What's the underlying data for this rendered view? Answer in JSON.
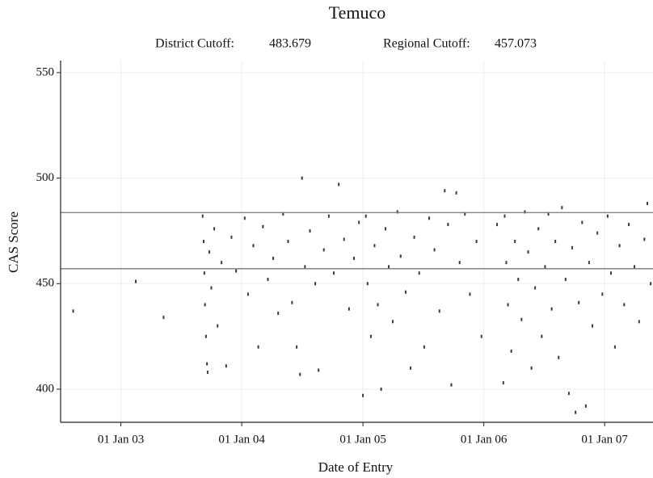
{
  "chart_data": {
    "type": "scatter",
    "title": "Temuco",
    "district_label": "District Cutoff:",
    "district_cutoff": 483.679,
    "regional_label": "Regional Cutoff:",
    "regional_cutoff": 457.073,
    "xlabel": "Date of Entry",
    "ylabel": "CAS Score",
    "color": "#3a3a3a",
    "grid": true,
    "xlim": [
      "2002-07-03",
      "2007-05-27"
    ],
    "xticks": [
      {
        "value": "2003-01-01",
        "label": "01 Jan 03"
      },
      {
        "value": "2004-01-01",
        "label": "01 Jan 04"
      },
      {
        "value": "2005-01-01",
        "label": "01 Jan 05"
      },
      {
        "value": "2006-01-01",
        "label": "01 Jan 06"
      },
      {
        "value": "2007-01-01",
        "label": "01 Jan 07"
      }
    ],
    "ylim": [
      384.3,
      555.7
    ],
    "yticks": [
      400,
      450,
      500,
      550
    ],
    "x": [
      "2002-08-10",
      "2003-02-15",
      "2003-05-10",
      "2003-09-05",
      "2003-09-08",
      "2003-09-10",
      "2003-09-12",
      "2003-09-15",
      "2003-09-18",
      "2003-09-20",
      "2003-09-25",
      "2003-10-01",
      "2003-10-10",
      "2003-10-20",
      "2003-11-01",
      "2003-11-15",
      "2003-12-01",
      "2003-12-15",
      "2004-01-10",
      "2004-01-20",
      "2004-02-05",
      "2004-02-20",
      "2004-03-05",
      "2004-03-20",
      "2004-04-05",
      "2004-04-20",
      "2004-05-05",
      "2004-05-20",
      "2004-06-01",
      "2004-06-15",
      "2004-06-25",
      "2004-07-01",
      "2004-07-10",
      "2004-07-25",
      "2004-08-10",
      "2004-08-20",
      "2004-09-05",
      "2004-09-20",
      "2004-10-05",
      "2004-10-20",
      "2004-11-05",
      "2004-11-20",
      "2004-12-05",
      "2004-12-20",
      "2005-01-01",
      "2005-01-10",
      "2005-01-15",
      "2005-01-25",
      "2005-02-05",
      "2005-02-15",
      "2005-02-25",
      "2005-03-10",
      "2005-03-20",
      "2005-04-01",
      "2005-04-15",
      "2005-04-25",
      "2005-05-10",
      "2005-05-25",
      "2005-06-05",
      "2005-06-20",
      "2005-07-05",
      "2005-07-20",
      "2005-08-05",
      "2005-08-20",
      "2005-09-05",
      "2005-09-15",
      "2005-09-25",
      "2005-10-10",
      "2005-10-20",
      "2005-11-05",
      "2005-11-20",
      "2005-12-10",
      "2005-12-25",
      "2006-02-10",
      "2006-03-01",
      "2006-03-05",
      "2006-03-10",
      "2006-03-15",
      "2006-03-25",
      "2006-04-05",
      "2006-04-15",
      "2006-04-25",
      "2006-05-05",
      "2006-05-15",
      "2006-05-25",
      "2006-06-05",
      "2006-06-15",
      "2006-06-25",
      "2006-07-05",
      "2006-07-15",
      "2006-07-25",
      "2006-08-05",
      "2006-08-15",
      "2006-08-25",
      "2006-09-05",
      "2006-09-15",
      "2006-09-25",
      "2006-10-05",
      "2006-10-15",
      "2006-10-25",
      "2006-11-05",
      "2006-11-15",
      "2006-11-25",
      "2006-12-10",
      "2006-12-25",
      "2007-01-10",
      "2007-01-20",
      "2007-02-01",
      "2007-02-15",
      "2007-03-01",
      "2007-03-15",
      "2007-04-01",
      "2007-04-15",
      "2007-05-01",
      "2007-05-10",
      "2007-05-20"
    ],
    "values": [
      437,
      451,
      434,
      482,
      470,
      455,
      440,
      425,
      412,
      408,
      465,
      448,
      476,
      430,
      460,
      411,
      472,
      456,
      481,
      445,
      468,
      420,
      477,
      452,
      462,
      436,
      483,
      470,
      441,
      420,
      407,
      500,
      458,
      475,
      450,
      409,
      466,
      482,
      455,
      497,
      471,
      438,
      462,
      479,
      397,
      482,
      450,
      425,
      468,
      440,
      400,
      476,
      458,
      432,
      484,
      463,
      446,
      410,
      472,
      455,
      420,
      481,
      466,
      437,
      494,
      478,
      402,
      493,
      460,
      483,
      445,
      470,
      425,
      478,
      403,
      482,
      460,
      440,
      418,
      470,
      452,
      433,
      484,
      465,
      410,
      448,
      476,
      425,
      458,
      483,
      438,
      470,
      415,
      486,
      452,
      398,
      467,
      389,
      441,
      479,
      392,
      460,
      430,
      474,
      445,
      482,
      455,
      420,
      468,
      440,
      478,
      458,
      432,
      471,
      488,
      450
    ]
  }
}
